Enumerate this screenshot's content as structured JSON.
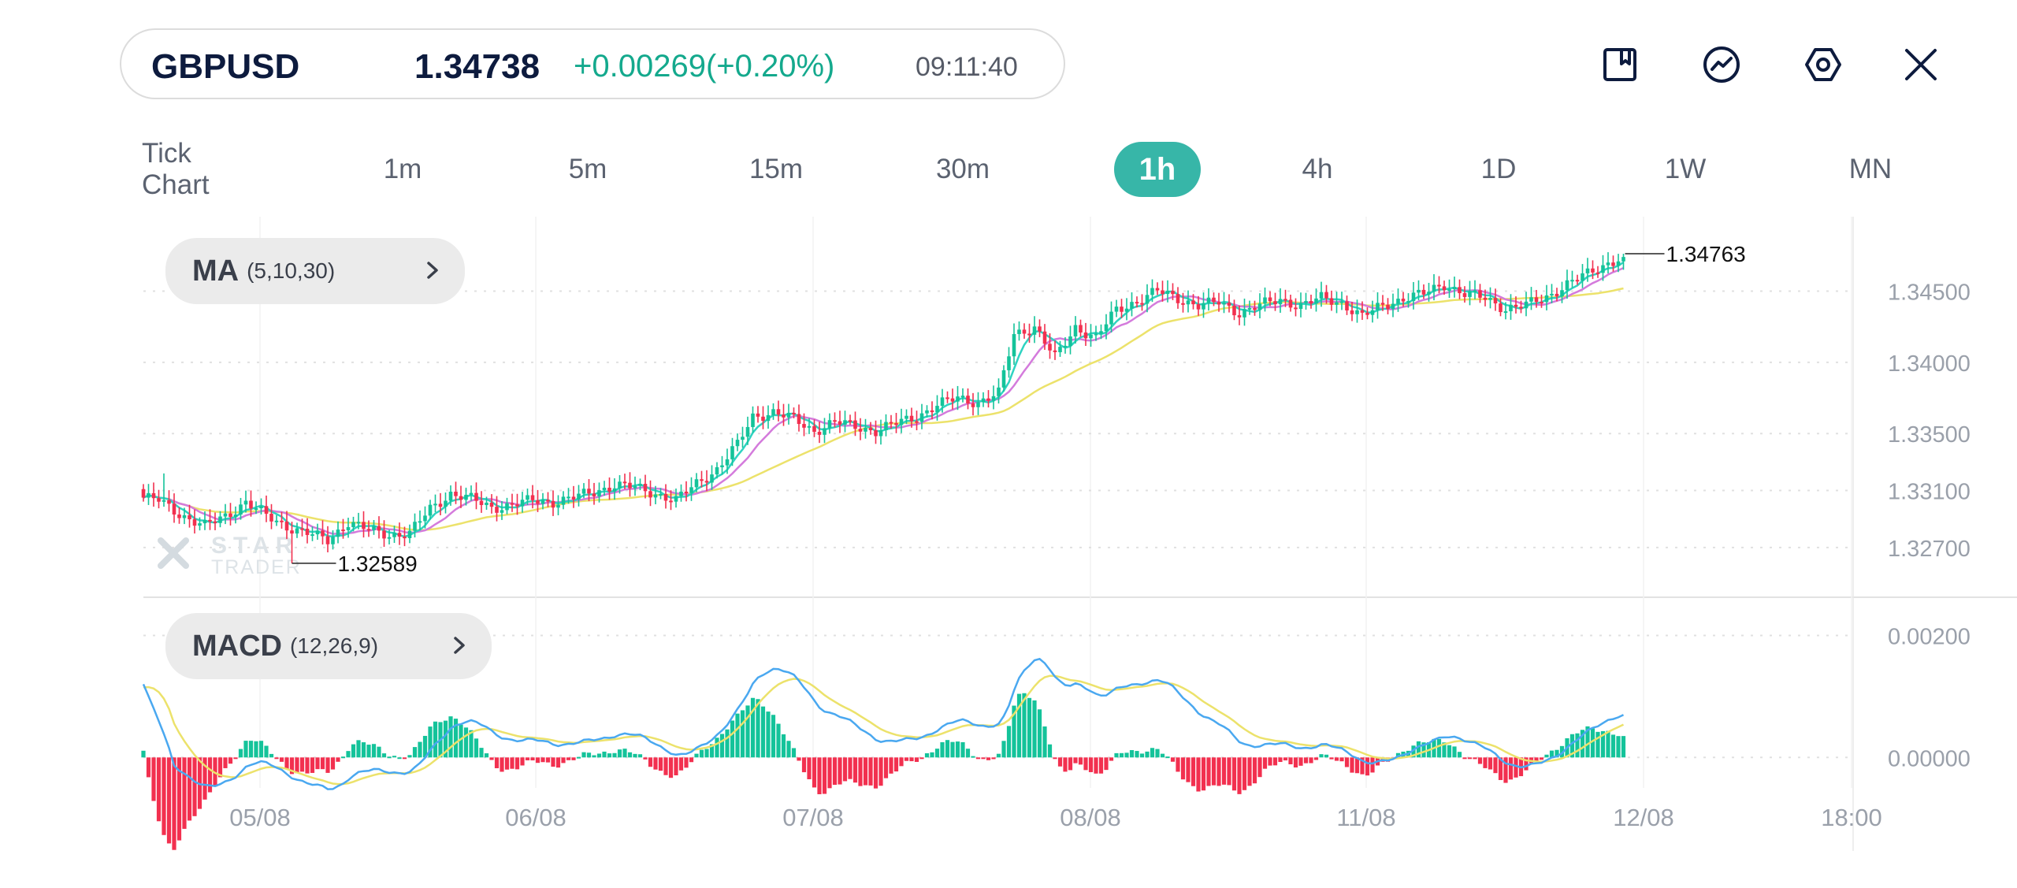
{
  "ticker": {
    "symbol": "GBPUSD",
    "price": "1.34738",
    "change": "+0.00269(+0.20%)",
    "time": "09:11:40"
  },
  "toolbar_icons": [
    "bookmark-icon",
    "chart-trend-icon",
    "settings-icon",
    "close-icon"
  ],
  "timeframes": [
    {
      "label": "Tick Chart",
      "active": false
    },
    {
      "label": "1m",
      "active": false
    },
    {
      "label": "5m",
      "active": false
    },
    {
      "label": "15m",
      "active": false
    },
    {
      "label": "30m",
      "active": false
    },
    {
      "label": "1h",
      "active": true
    },
    {
      "label": "4h",
      "active": false
    },
    {
      "label": "1D",
      "active": false
    },
    {
      "label": "1W",
      "active": false
    },
    {
      "label": "MN",
      "active": false
    }
  ],
  "indicators": {
    "ma": {
      "name": "MA",
      "params": "(5,10,30)"
    },
    "macd": {
      "name": "MACD",
      "params": "(12,26,9)"
    }
  },
  "colors": {
    "up": "#14c39a",
    "down": "#f2304f",
    "ma5": "#2fd3c1",
    "ma10": "#d47bdc",
    "ma30": "#ece26b",
    "dif": "#4aa8f0",
    "dea": "#ece26b",
    "accent": "#37b6a8",
    "text_dark": "#0d1b3e"
  },
  "chart_data": {
    "type": "candlestick",
    "price_axis_ticks": [
      "1.34500",
      "1.34000",
      "1.33500",
      "1.33100",
      "1.32700"
    ],
    "macd_axis_ticks": [
      "0.00200",
      "0.00000"
    ],
    "x_tick_labels": [
      "05/08",
      "06/08",
      "07/08",
      "08/08",
      "11/08",
      "12/08",
      "18:00"
    ],
    "max_label": "1.34763",
    "min_label": "1.32589",
    "watermark": [
      "STAR",
      "TRADER"
    ],
    "price_range": [
      1.3245,
      1.3494
    ],
    "macd_range": [
      -0.0005,
      0.0026
    ],
    "close_path": [
      [
        0,
        1.3305
      ],
      [
        3,
        1.3303
      ],
      [
        6,
        1.3296
      ],
      [
        9,
        1.329
      ],
      [
        12,
        1.3285
      ],
      [
        16,
        1.3292
      ],
      [
        20,
        1.3302
      ],
      [
        24,
        1.3292
      ],
      [
        28,
        1.3285
      ],
      [
        32,
        1.328
      ],
      [
        36,
        1.3275
      ],
      [
        40,
        1.3288
      ],
      [
        44,
        1.3282
      ],
      [
        48,
        1.3279
      ],
      [
        52,
        1.328
      ],
      [
        56,
        1.3297
      ],
      [
        60,
        1.3308
      ],
      [
        64,
        1.3304
      ],
      [
        68,
        1.3298
      ],
      [
        72,
        1.33
      ],
      [
        76,
        1.3303
      ],
      [
        80,
        1.3302
      ],
      [
        84,
        1.3305
      ],
      [
        88,
        1.3309
      ],
      [
        92,
        1.3314
      ],
      [
        96,
        1.3312
      ],
      [
        100,
        1.3308
      ],
      [
        104,
        1.3303
      ],
      [
        108,
        1.3315
      ],
      [
        112,
        1.3325
      ],
      [
        116,
        1.3342
      ],
      [
        119,
        1.3362
      ],
      [
        123,
        1.3365
      ],
      [
        127,
        1.336
      ],
      [
        131,
        1.3352
      ],
      [
        135,
        1.3358
      ],
      [
        139,
        1.3355
      ],
      [
        143,
        1.3352
      ],
      [
        147,
        1.3357
      ],
      [
        151,
        1.3362
      ],
      [
        155,
        1.337
      ],
      [
        159,
        1.3375
      ],
      [
        163,
        1.3372
      ],
      [
        167,
        1.3378
      ],
      [
        170,
        1.342
      ],
      [
        174,
        1.3425
      ],
      [
        178,
        1.3403
      ],
      [
        182,
        1.3425
      ],
      [
        186,
        1.3417
      ],
      [
        190,
        1.3437
      ],
      [
        194,
        1.3443
      ],
      [
        198,
        1.345
      ],
      [
        202,
        1.3445
      ],
      [
        206,
        1.344
      ],
      [
        210,
        1.3442
      ],
      [
        214,
        1.3435
      ],
      [
        218,
        1.344
      ],
      [
        222,
        1.3444
      ],
      [
        226,
        1.344
      ],
      [
        230,
        1.3445
      ],
      [
        234,
        1.3442
      ],
      [
        238,
        1.3432
      ],
      [
        242,
        1.344
      ],
      [
        246,
        1.3445
      ],
      [
        250,
        1.3448
      ],
      [
        254,
        1.3455
      ],
      [
        258,
        1.3448
      ],
      [
        262,
        1.3445
      ],
      [
        266,
        1.3438
      ],
      [
        270,
        1.344
      ],
      [
        274,
        1.3446
      ],
      [
        278,
        1.3455
      ],
      [
        282,
        1.3462
      ],
      [
        286,
        1.347
      ],
      [
        289,
        1.3474
      ]
    ]
  }
}
